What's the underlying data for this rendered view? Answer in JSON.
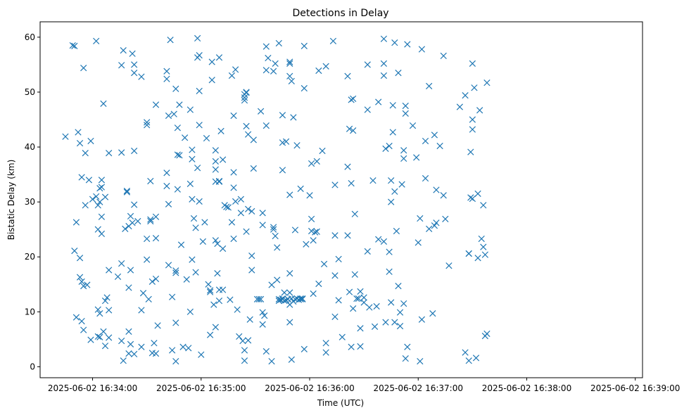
{
  "chart_data": {
    "type": "scatter",
    "title": "Detections in Delay",
    "xlabel": "Time (UTC)",
    "ylabel": "Bistatic Delay (km)",
    "marker": "x",
    "color": "#1f77b4",
    "grid": false,
    "legend": "none",
    "xlim": [
      -14,
      319
    ],
    "ylim": [
      -2,
      62.8
    ],
    "x_unit": "seconds after 2025-06-02 16:33:45",
    "x_ticks": [
      {
        "value": 15,
        "label": "2025-06-02 16:34:00"
      },
      {
        "value": 75,
        "label": "2025-06-02 16:35:00"
      },
      {
        "value": 135,
        "label": "2025-06-02 16:36:00"
      },
      {
        "value": 195,
        "label": "2025-06-02 16:37:00"
      },
      {
        "value": 255,
        "label": "2025-06-02 16:38:00"
      },
      {
        "value": 315,
        "label": "2025-06-02 16:39:00"
      }
    ],
    "y_ticks": [
      0,
      10,
      20,
      30,
      40,
      50,
      60
    ],
    "points": [
      [
        0,
        41.9
      ],
      [
        4,
        58.5
      ],
      [
        5,
        58.4
      ],
      [
        5,
        21.1
      ],
      [
        6,
        9
      ],
      [
        6,
        26.3
      ],
      [
        7,
        42.7
      ],
      [
        8,
        40.7
      ],
      [
        8,
        19.8
      ],
      [
        8,
        16.3
      ],
      [
        9,
        34.5
      ],
      [
        9,
        8.3
      ],
      [
        9,
        15.5
      ],
      [
        10,
        54.4
      ],
      [
        10,
        6.7
      ],
      [
        10,
        14.7
      ],
      [
        11,
        29.4
      ],
      [
        11,
        38.9
      ],
      [
        12,
        14.9
      ],
      [
        13,
        34
      ],
      [
        14,
        4.9
      ],
      [
        14,
        41.1
      ],
      [
        15,
        30.5
      ],
      [
        17,
        59.3
      ],
      [
        17,
        31
      ],
      [
        18,
        29.4
      ],
      [
        18,
        25
      ],
      [
        18,
        5.5
      ],
      [
        18,
        10.4
      ],
      [
        19,
        32.5
      ],
      [
        19,
        30
      ],
      [
        19,
        9.7
      ],
      [
        19,
        5.4
      ],
      [
        20,
        34
      ],
      [
        20,
        32.7
      ],
      [
        20,
        27.3
      ],
      [
        20,
        24.2
      ],
      [
        21,
        47.9
      ],
      [
        21,
        6.4
      ],
      [
        22,
        30.9
      ],
      [
        22,
        3.8
      ],
      [
        22,
        12
      ],
      [
        23,
        12.6
      ],
      [
        24,
        38.9
      ],
      [
        24,
        17.6
      ],
      [
        24,
        10.3
      ],
      [
        24,
        5.3
      ],
      [
        29,
        16.4
      ],
      [
        31,
        54.9
      ],
      [
        31,
        39
      ],
      [
        31,
        18.8
      ],
      [
        31,
        4.7
      ],
      [
        32,
        57.6
      ],
      [
        32,
        1.1
      ],
      [
        33,
        25.1
      ],
      [
        34,
        32
      ],
      [
        34,
        31.8
      ],
      [
        35,
        25.6
      ],
      [
        35,
        14.4
      ],
      [
        35,
        6.4
      ],
      [
        35,
        2.4
      ],
      [
        36,
        27.4
      ],
      [
        36,
        17.6
      ],
      [
        36,
        4.1
      ],
      [
        37,
        57
      ],
      [
        37,
        26.2
      ],
      [
        38,
        55
      ],
      [
        38,
        53.5
      ],
      [
        38,
        29.5
      ],
      [
        38,
        39.3
      ],
      [
        38,
        2.3
      ],
      [
        40,
        26.5
      ],
      [
        42,
        52.8
      ],
      [
        42,
        10.3
      ],
      [
        42,
        3.6
      ],
      [
        43,
        13.4
      ],
      [
        45,
        44.5
      ],
      [
        45,
        44
      ],
      [
        45,
        23.3
      ],
      [
        45,
        19.5
      ],
      [
        46,
        12.3
      ],
      [
        47,
        33.8
      ],
      [
        47,
        26.8
      ],
      [
        47,
        26.5
      ],
      [
        48,
        15.5
      ],
      [
        48,
        2.5
      ],
      [
        49,
        4.3
      ],
      [
        50,
        47.7
      ],
      [
        50,
        27.3
      ],
      [
        50,
        23.4
      ],
      [
        50,
        16
      ],
      [
        50,
        2.4
      ],
      [
        51,
        7.5
      ],
      [
        56,
        53.8
      ],
      [
        56,
        52.4
      ],
      [
        56,
        35.3
      ],
      [
        56,
        32.9
      ],
      [
        57,
        45.7
      ],
      [
        57,
        29.6
      ],
      [
        57,
        18.5
      ],
      [
        58,
        59.5
      ],
      [
        59,
        3
      ],
      [
        59,
        12.7
      ],
      [
        60,
        46
      ],
      [
        61,
        50.6
      ],
      [
        61,
        8
      ],
      [
        61,
        17.5
      ],
      [
        61,
        1
      ],
      [
        61,
        17.1
      ],
      [
        62,
        43.5
      ],
      [
        62,
        32.3
      ],
      [
        62,
        38.6
      ],
      [
        63,
        47.7
      ],
      [
        63,
        38.5
      ],
      [
        64,
        22.2
      ],
      [
        65,
        3.6
      ],
      [
        66,
        41.7
      ],
      [
        67,
        15.9
      ],
      [
        68,
        3.4
      ],
      [
        69,
        46.8
      ],
      [
        69,
        33.3
      ],
      [
        69,
        10
      ],
      [
        70,
        39.5
      ],
      [
        70,
        37.8
      ],
      [
        70,
        30.5
      ],
      [
        70,
        19.5
      ],
      [
        71,
        27
      ],
      [
        72,
        25.3
      ],
      [
        72,
        17.2
      ],
      [
        73,
        59.8
      ],
      [
        73,
        56.3
      ],
      [
        73,
        36.2
      ],
      [
        74,
        56.7
      ],
      [
        74,
        50.2
      ],
      [
        74,
        44
      ],
      [
        74,
        30.1
      ],
      [
        75,
        2.2
      ],
      [
        76,
        22.8
      ],
      [
        77,
        26.3
      ],
      [
        78,
        41.6
      ],
      [
        79,
        15
      ],
      [
        80,
        13.6
      ],
      [
        80,
        13.9
      ],
      [
        80,
        5.8
      ],
      [
        81,
        55.5
      ],
      [
        81,
        52.2
      ],
      [
        82,
        11.3
      ],
      [
        83,
        39.4
      ],
      [
        83,
        37.4
      ],
      [
        83,
        35.9
      ],
      [
        83,
        33.7
      ],
      [
        83,
        23
      ],
      [
        83,
        7.2
      ],
      [
        84,
        22.4
      ],
      [
        84,
        17
      ],
      [
        85,
        56.3
      ],
      [
        85,
        33.8
      ],
      [
        85,
        33.7
      ],
      [
        85,
        14
      ],
      [
        85,
        12
      ],
      [
        86,
        42.9
      ],
      [
        87,
        37.7
      ],
      [
        87,
        21.5
      ],
      [
        87,
        14
      ],
      [
        88,
        29.4
      ],
      [
        89,
        29.1
      ],
      [
        90,
        29
      ],
      [
        91,
        12.2
      ],
      [
        92,
        53
      ],
      [
        92,
        26.3
      ],
      [
        93,
        45.7
      ],
      [
        93,
        35.4
      ],
      [
        93,
        32.6
      ],
      [
        93,
        23.3
      ],
      [
        94,
        54.1
      ],
      [
        94,
        30.1
      ],
      [
        95,
        10.4
      ],
      [
        96,
        5.5
      ],
      [
        97,
        30.5
      ],
      [
        97,
        28
      ],
      [
        98,
        4.7
      ],
      [
        99,
        3
      ],
      [
        99,
        1.1
      ],
      [
        99,
        49.6
      ],
      [
        99,
        49
      ],
      [
        99,
        48.5
      ],
      [
        100,
        50
      ],
      [
        100,
        49.9
      ],
      [
        100,
        43.8
      ],
      [
        100,
        24.6
      ],
      [
        101,
        4.8
      ],
      [
        101,
        28.7
      ],
      [
        101,
        42.3
      ],
      [
        102,
        8.6
      ],
      [
        103,
        28.3
      ],
      [
        103,
        20.2
      ],
      [
        103,
        17.6
      ],
      [
        104,
        41.3
      ],
      [
        104,
        36.1
      ],
      [
        106,
        12.3
      ],
      [
        107,
        12.3
      ],
      [
        108,
        12.3
      ],
      [
        108,
        46.5
      ],
      [
        109,
        9.9
      ],
      [
        109,
        28
      ],
      [
        109,
        25.8
      ],
      [
        109,
        7.7
      ],
      [
        110,
        9.3
      ],
      [
        111,
        2.8
      ],
      [
        111,
        58.3
      ],
      [
        111,
        54
      ],
      [
        111,
        43.9
      ],
      [
        112,
        56.2
      ],
      [
        114,
        1
      ],
      [
        114,
        14.9
      ],
      [
        115,
        53.8
      ],
      [
        115,
        25.4
      ],
      [
        115,
        25
      ],
      [
        116,
        55.2
      ],
      [
        116,
        23.8
      ],
      [
        117,
        21.7
      ],
      [
        117,
        15.8
      ],
      [
        118,
        58.9
      ],
      [
        118,
        12.3
      ],
      [
        118,
        12
      ],
      [
        119,
        12.2
      ],
      [
        120,
        12.3
      ],
      [
        120,
        40.8
      ],
      [
        120,
        35.8
      ],
      [
        120,
        45.8
      ],
      [
        120,
        12.4
      ],
      [
        121,
        13.5
      ],
      [
        121,
        12
      ],
      [
        122,
        12.1
      ],
      [
        122,
        41
      ],
      [
        123,
        12.3
      ],
      [
        123,
        12.3
      ],
      [
        124,
        55.5
      ],
      [
        124,
        55.2
      ],
      [
        124,
        52.9
      ],
      [
        124,
        17
      ],
      [
        124,
        13.5
      ],
      [
        124,
        11.3
      ],
      [
        124,
        8.1
      ],
      [
        124,
        31.3
      ],
      [
        125,
        1.3
      ],
      [
        125,
        12.4
      ],
      [
        125,
        52
      ],
      [
        126,
        11.9
      ],
      [
        126,
        45.4
      ],
      [
        127,
        12.3
      ],
      [
        127,
        24.9
      ],
      [
        128,
        12.4
      ],
      [
        128,
        40.3
      ],
      [
        129,
        12.2
      ],
      [
        130,
        12.3
      ],
      [
        130,
        32.4
      ],
      [
        130,
        12.4
      ],
      [
        131,
        12.4
      ],
      [
        131,
        12.3
      ],
      [
        132,
        58.4
      ],
      [
        132,
        50.7
      ],
      [
        132,
        3.2
      ],
      [
        133,
        22.3
      ],
      [
        135,
        31.2
      ],
      [
        136,
        37
      ],
      [
        136,
        26.9
      ],
      [
        136,
        24.7
      ],
      [
        137,
        13.3
      ],
      [
        137,
        23
      ],
      [
        138,
        24.5
      ],
      [
        139,
        24.6
      ],
      [
        139,
        37.4
      ],
      [
        140,
        53.9
      ],
      [
        140,
        15.1
      ],
      [
        142,
        39.3
      ],
      [
        143,
        18.7
      ],
      [
        144,
        4.3
      ],
      [
        144,
        54.7
      ],
      [
        144,
        2.6
      ],
      [
        148,
        59.3
      ],
      [
        149,
        33.1
      ],
      [
        149,
        16.6
      ],
      [
        149,
        9.1
      ],
      [
        149,
        23.9
      ],
      [
        151,
        19.6
      ],
      [
        151,
        12.1
      ],
      [
        153,
        5.4
      ],
      [
        156,
        52.9
      ],
      [
        156,
        36.4
      ],
      [
        156,
        23.9
      ],
      [
        157,
        43.3
      ],
      [
        157,
        13.6
      ],
      [
        158,
        48.6
      ],
      [
        158,
        33.4
      ],
      [
        158,
        3.6
      ],
      [
        159,
        48.8
      ],
      [
        159,
        43
      ],
      [
        159,
        10.6
      ],
      [
        160,
        16.8
      ],
      [
        160,
        27.8
      ],
      [
        161,
        12.4
      ],
      [
        162,
        12.4
      ],
      [
        163,
        13.7
      ],
      [
        163,
        7
      ],
      [
        163,
        3.7
      ],
      [
        165,
        11.7
      ],
      [
        165,
        12.6
      ],
      [
        167,
        55
      ],
      [
        167,
        46.8
      ],
      [
        167,
        21
      ],
      [
        168,
        10.8
      ],
      [
        170,
        33.9
      ],
      [
        171,
        7.3
      ],
      [
        172,
        11
      ],
      [
        173,
        48.2
      ],
      [
        173,
        23.2
      ],
      [
        176,
        59.7
      ],
      [
        176,
        55.2
      ],
      [
        176,
        53
      ],
      [
        176,
        22.8
      ],
      [
        177,
        39.7
      ],
      [
        177,
        8.1
      ],
      [
        179,
        40.2
      ],
      [
        179,
        20.9
      ],
      [
        179,
        17.3
      ],
      [
        180,
        30
      ],
      [
        180,
        33.9
      ],
      [
        180,
        11.7
      ],
      [
        181,
        47.6
      ],
      [
        181,
        42.7
      ],
      [
        182,
        59
      ],
      [
        182,
        31.9
      ],
      [
        182,
        8.1
      ],
      [
        183,
        24.7
      ],
      [
        184,
        53.5
      ],
      [
        184,
        14.7
      ],
      [
        185,
        9.9
      ],
      [
        185,
        7.4
      ],
      [
        186,
        33.2
      ],
      [
        187,
        11.5
      ],
      [
        187,
        39.4
      ],
      [
        187,
        37.9
      ],
      [
        188,
        47.5
      ],
      [
        188,
        46.1
      ],
      [
        188,
        1.5
      ],
      [
        189,
        58.7
      ],
      [
        189,
        3.6
      ],
      [
        192,
        43.9
      ],
      [
        194,
        38.1
      ],
      [
        195,
        22.6
      ],
      [
        196,
        27
      ],
      [
        196,
        1
      ],
      [
        197,
        8.6
      ],
      [
        197,
        57.8
      ],
      [
        199,
        41.1
      ],
      [
        199,
        34.3
      ],
      [
        201,
        51.1
      ],
      [
        201,
        25.1
      ],
      [
        203,
        9.7
      ],
      [
        204,
        25.7
      ],
      [
        204,
        42.2
      ],
      [
        205,
        32.2
      ],
      [
        205,
        26.2
      ],
      [
        207,
        40.2
      ],
      [
        209,
        56.6
      ],
      [
        209,
        31.2
      ],
      [
        210,
        26.9
      ],
      [
        212,
        18.4
      ],
      [
        218,
        47.3
      ],
      [
        221,
        49.4
      ],
      [
        221,
        2.6
      ],
      [
        223,
        1.1
      ],
      [
        223,
        20.6
      ],
      [
        223,
        20.6
      ],
      [
        224,
        39.1
      ],
      [
        224,
        30.8
      ],
      [
        225,
        55.2
      ],
      [
        225,
        45
      ],
      [
        225,
        43.2
      ],
      [
        225,
        30.6
      ],
      [
        226,
        50.8
      ],
      [
        227,
        1.6
      ],
      [
        228,
        31.5
      ],
      [
        228,
        19.8
      ],
      [
        229,
        46.7
      ],
      [
        230,
        23.3
      ],
      [
        231,
        21.8
      ],
      [
        231,
        29.4
      ],
      [
        232,
        20.4
      ],
      [
        232,
        5.6
      ],
      [
        233,
        51.7
      ],
      [
        233,
        6
      ]
    ]
  }
}
